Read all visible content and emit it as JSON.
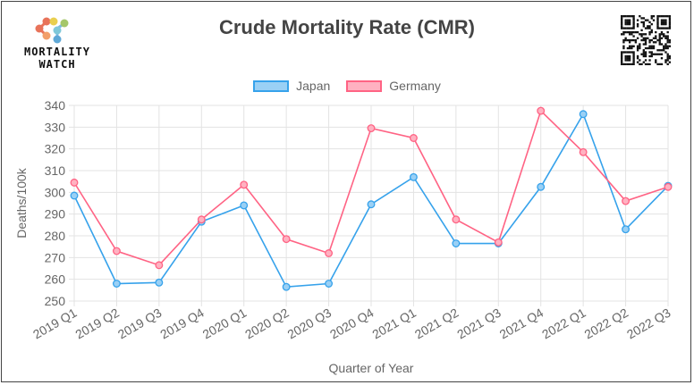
{
  "brand": {
    "line1": "MORTALITY",
    "line2": "WATCH"
  },
  "chart_data": {
    "type": "line",
    "title": "Crude Mortality Rate (CMR)",
    "xlabel": "Quarter of Year",
    "ylabel": "Deaths/100k",
    "ylim": [
      250,
      340
    ],
    "yticks": [
      250,
      260,
      270,
      280,
      290,
      300,
      310,
      320,
      330,
      340
    ],
    "grid": true,
    "legend_position": "top-center",
    "categories": [
      "2019 Q1",
      "2019 Q2",
      "2019 Q3",
      "2019 Q4",
      "2020 Q1",
      "2020 Q2",
      "2020 Q3",
      "2020 Q4",
      "2021 Q1",
      "2021 Q2",
      "2021 Q3",
      "2021 Q4",
      "2022 Q1",
      "2022 Q2",
      "2022 Q3"
    ],
    "series": [
      {
        "name": "Japan",
        "color": "#36a2eb",
        "fill": "#9ad0f5",
        "values": [
          298.5,
          258,
          258.5,
          286.5,
          294,
          256.5,
          258,
          294.5,
          307,
          276.5,
          276.5,
          302.5,
          336,
          283,
          303
        ]
      },
      {
        "name": "Germany",
        "color": "#ff6384",
        "fill": "#ffb1c1",
        "values": [
          304.5,
          273,
          266.5,
          287.5,
          303.5,
          278.5,
          272,
          329.5,
          325,
          287.5,
          277,
          337.5,
          318.5,
          296,
          302.5
        ]
      }
    ]
  }
}
